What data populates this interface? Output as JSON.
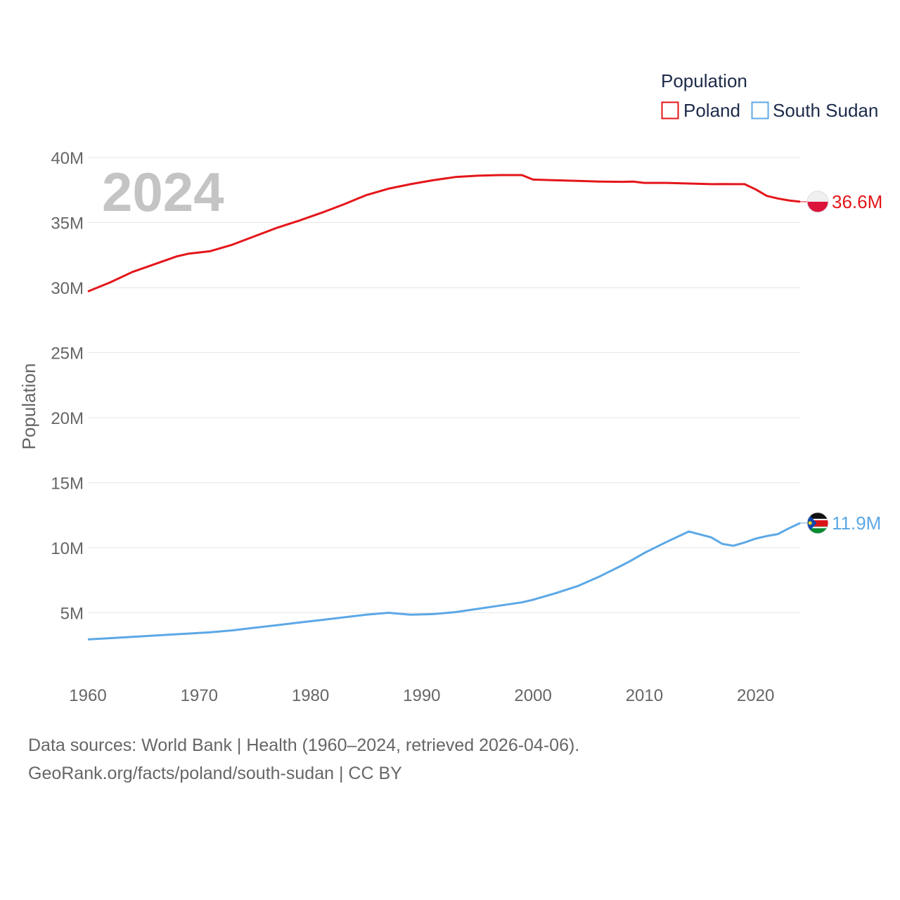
{
  "chart_data": {
    "type": "line",
    "year_display": "2024",
    "ylabel": "Population",
    "ylim": [
      0,
      40000000
    ],
    "xlim": [
      1960,
      2024
    ],
    "x_ticks": [
      1960,
      1970,
      1980,
      1990,
      2000,
      2010,
      2020
    ],
    "x_tick_labels": [
      "1960",
      "1970",
      "1980",
      "1990",
      "2000",
      "2010",
      "2020"
    ],
    "y_ticks": [
      5000000,
      10000000,
      15000000,
      20000000,
      25000000,
      30000000,
      35000000,
      40000000
    ],
    "y_tick_labels": [
      "5M",
      "10M",
      "15M",
      "20M",
      "25M",
      "30M",
      "35M",
      "40M"
    ],
    "legend": {
      "title": "Population",
      "position": "top-right"
    },
    "x": [
      1960,
      1962,
      1964,
      1966,
      1968,
      1969,
      1971,
      1973,
      1975,
      1977,
      1979,
      1981,
      1983,
      1985,
      1987,
      1989,
      1991,
      1993,
      1995,
      1997,
      1999,
      2000,
      2002,
      2004,
      2006,
      2008,
      2009,
      2010,
      2012,
      2014,
      2016,
      2017,
      2018,
      2019,
      2020,
      2021,
      2022,
      2023,
      2024
    ],
    "series": [
      {
        "name": "Poland",
        "color": "#e4161a",
        "end_label": "36.6M",
        "flag": "poland",
        "values": [
          29700000,
          30400000,
          31200000,
          31800000,
          32400000,
          32600000,
          32800000,
          33300000,
          33950000,
          34600000,
          35150000,
          35750000,
          36400000,
          37100000,
          37600000,
          37950000,
          38250000,
          38500000,
          38600000,
          38650000,
          38650000,
          38300000,
          38250000,
          38200000,
          38150000,
          38130000,
          38150000,
          38050000,
          38050000,
          38000000,
          37950000,
          37960000,
          37950000,
          37950000,
          37550000,
          37050000,
          36850000,
          36700000,
          36600000
        ]
      },
      {
        "name": "South Sudan",
        "color": "#5ca8e6",
        "end_label": "11.9M",
        "flag": "south-sudan",
        "values": [
          2950000,
          3050000,
          3150000,
          3250000,
          3350000,
          3400000,
          3500000,
          3650000,
          3850000,
          4050000,
          4250000,
          4450000,
          4650000,
          4850000,
          5000000,
          4850000,
          4900000,
          5050000,
          5300000,
          5550000,
          5800000,
          6000000,
          6500000,
          7050000,
          7800000,
          8650000,
          9100000,
          9600000,
          10450000,
          11250000,
          10800000,
          10300000,
          10150000,
          10400000,
          10700000,
          10900000,
          11050000,
          11500000,
          11900000
        ]
      }
    ]
  },
  "footer": {
    "line1": "Data sources: World Bank | Health (1960–2024, retrieved 2026-04-06).",
    "line2": "GeoRank.org/facts/poland/south-sudan | CC BY"
  }
}
